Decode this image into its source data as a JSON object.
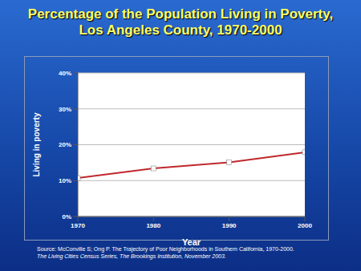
{
  "chart_data": {
    "type": "line",
    "title": "Percentage of the Population Living in Poverty, Los Angeles County, 1970-2000",
    "x_label": "Year",
    "y_label": "Living in poverty",
    "x": [
      1970,
      1980,
      1990,
      2000
    ],
    "values": [
      10.7,
      13.4,
      15.1,
      17.9
    ],
    "color": "#c0282d",
    "marker": "square",
    "xlim": [
      1970,
      2000
    ],
    "xticks": [
      1970,
      1980,
      1990,
      2000
    ],
    "ylim": [
      0,
      40
    ],
    "yticks": [
      {
        "value": 0,
        "label": "0%"
      },
      {
        "value": 10,
        "label": "10%"
      },
      {
        "value": 20,
        "label": "20%"
      },
      {
        "value": 30,
        "label": "30%"
      },
      {
        "value": 40,
        "label": "40%"
      }
    ],
    "grid": true,
    "source": [
      "Source: McConville S; Ong P. The Trajectory of Poor Neighborhoods in Southern California, 1970-2000.",
      "The Living Cities Census Series, The Brookings Institution, November 2003."
    ]
  }
}
